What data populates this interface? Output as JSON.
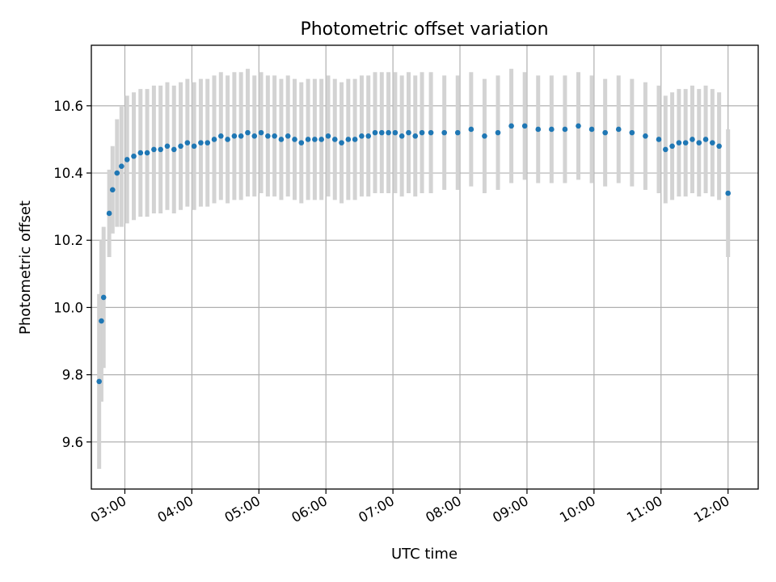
{
  "chart_data": {
    "type": "scatter",
    "title": "Photometric offset variation",
    "xlabel": "UTC time",
    "ylabel": "Photometric offset",
    "x_axis": "time",
    "xlim": [
      "02:30",
      "12:27"
    ],
    "ylim": [
      9.46,
      10.78
    ],
    "x_ticks": [
      "03:00",
      "04:00",
      "05:00",
      "06:00",
      "07:00",
      "08:00",
      "09:00",
      "10:00",
      "11:00",
      "12:00"
    ],
    "y_ticks": [
      9.6,
      9.8,
      10.0,
      10.2,
      10.4,
      10.6
    ],
    "grid": true,
    "legend": "none",
    "colors": {
      "points": "#1f77b4",
      "errorbars": "#d3d3d3"
    },
    "series": [
      {
        "style": "points with vertical error bars",
        "x": [
          "02:37",
          "02:39",
          "02:41",
          "02:46",
          "02:49",
          "02:53",
          "02:57",
          "03:02",
          "03:08",
          "03:14",
          "03:20",
          "03:26",
          "03:32",
          "03:38",
          "03:44",
          "03:50",
          "03:56",
          "04:02",
          "04:08",
          "04:14",
          "04:20",
          "04:26",
          "04:32",
          "04:38",
          "04:44",
          "04:50",
          "04:56",
          "05:02",
          "05:08",
          "05:14",
          "05:20",
          "05:26",
          "05:32",
          "05:38",
          "05:44",
          "05:50",
          "05:56",
          "06:02",
          "06:08",
          "06:14",
          "06:20",
          "06:26",
          "06:32",
          "06:38",
          "06:44",
          "06:50",
          "06:56",
          "07:02",
          "07:08",
          "07:14",
          "07:20",
          "07:26",
          "07:34",
          "07:46",
          "07:58",
          "08:10",
          "08:22",
          "08:34",
          "08:46",
          "08:58",
          "09:10",
          "09:22",
          "09:34",
          "09:46",
          "09:58",
          "10:10",
          "10:22",
          "10:34",
          "10:46",
          "10:58",
          "11:04",
          "11:10",
          "11:16",
          "11:22",
          "11:28",
          "11:34",
          "11:40",
          "11:46",
          "11:52",
          "12:00"
        ],
        "y": [
          9.78,
          9.96,
          10.03,
          10.28,
          10.35,
          10.4,
          10.42,
          10.44,
          10.45,
          10.46,
          10.46,
          10.47,
          10.47,
          10.48,
          10.47,
          10.48,
          10.49,
          10.48,
          10.49,
          10.49,
          10.5,
          10.51,
          10.5,
          10.51,
          10.51,
          10.52,
          10.51,
          10.52,
          10.51,
          10.51,
          10.5,
          10.51,
          10.5,
          10.49,
          10.5,
          10.5,
          10.5,
          10.51,
          10.5,
          10.49,
          10.5,
          10.5,
          10.51,
          10.51,
          10.52,
          10.52,
          10.52,
          10.52,
          10.51,
          10.52,
          10.51,
          10.52,
          10.52,
          10.52,
          10.52,
          10.53,
          10.51,
          10.52,
          10.54,
          10.54,
          10.53,
          10.53,
          10.53,
          10.54,
          10.53,
          10.52,
          10.53,
          10.52,
          10.51,
          10.5,
          10.47,
          10.48,
          10.49,
          10.49,
          10.5,
          10.49,
          10.5,
          10.49,
          10.48,
          10.34
        ],
        "yerr": [
          0.26,
          0.24,
          0.21,
          0.13,
          0.13,
          0.16,
          0.18,
          0.19,
          0.19,
          0.19,
          0.19,
          0.19,
          0.19,
          0.19,
          0.19,
          0.19,
          0.19,
          0.19,
          0.19,
          0.19,
          0.19,
          0.19,
          0.19,
          0.19,
          0.19,
          0.19,
          0.18,
          0.18,
          0.18,
          0.18,
          0.18,
          0.18,
          0.18,
          0.18,
          0.18,
          0.18,
          0.18,
          0.18,
          0.18,
          0.18,
          0.18,
          0.18,
          0.18,
          0.18,
          0.18,
          0.18,
          0.18,
          0.18,
          0.18,
          0.18,
          0.18,
          0.18,
          0.18,
          0.17,
          0.17,
          0.17,
          0.17,
          0.17,
          0.17,
          0.16,
          0.16,
          0.16,
          0.16,
          0.16,
          0.16,
          0.16,
          0.16,
          0.16,
          0.16,
          0.16,
          0.16,
          0.16,
          0.16,
          0.16,
          0.16,
          0.16,
          0.16,
          0.16,
          0.16,
          0.19
        ]
      }
    ]
  }
}
